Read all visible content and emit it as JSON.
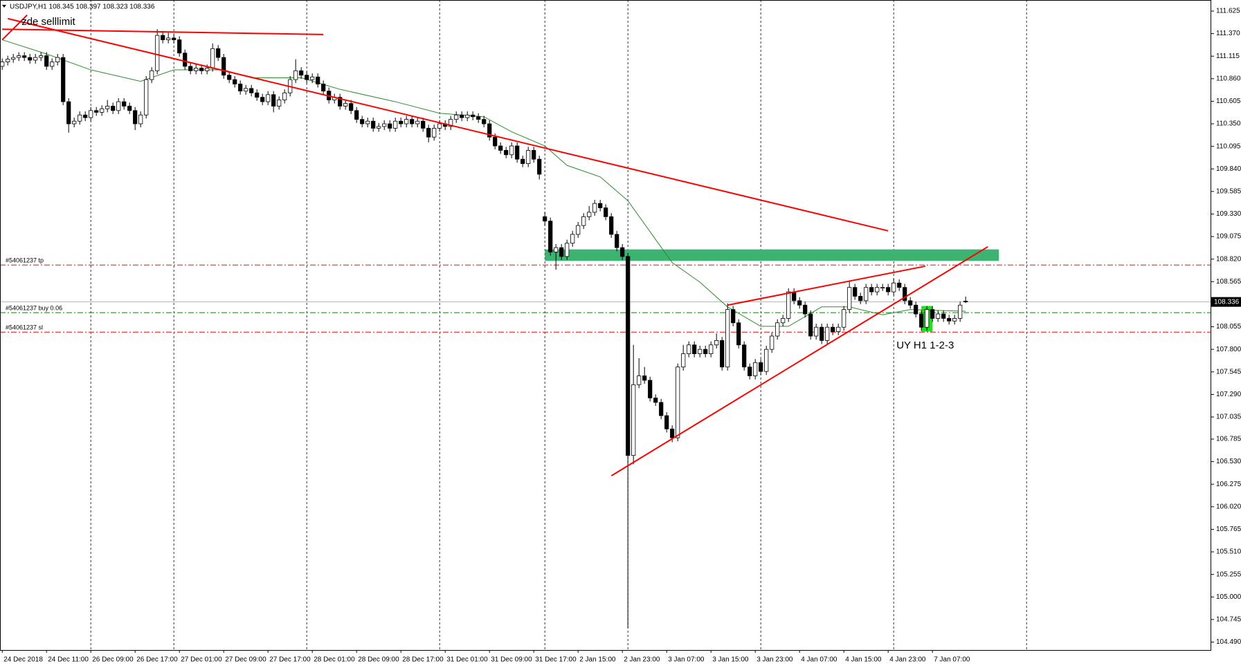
{
  "chart_data": {
    "type": "candlestick",
    "title": "USDJPY,H1  108.345 108.397 108.323 108.336",
    "xlim": [
      -0.4,
      218.35
    ],
    "ylim": [
      104.4,
      111.75
    ],
    "yticks": [
      {
        "value": 104.49,
        "label": "104.490"
      },
      104.745,
      {
        "value": 105,
        "label": "105.000"
      },
      105.255,
      {
        "value": 105.51,
        "label": "105.510"
      },
      105.765,
      {
        "value": 106.02,
        "label": "106.020"
      },
      106.275,
      {
        "value": 106.53,
        "label": "106.530"
      },
      106.785,
      107.035,
      {
        "value": 107.29,
        "label": "107.290"
      },
      107.545,
      {
        "value": 107.8,
        "label": "107.800"
      },
      108.055,
      108.565,
      {
        "value": 108.82,
        "label": "108.820"
      },
      109.075,
      {
        "value": 109.33,
        "label": "109.330"
      },
      109.585,
      {
        "value": 109.84,
        "label": "109.840"
      },
      110.095,
      {
        "value": 110.35,
        "label": "110.350"
      },
      110.605,
      {
        "value": 110.86,
        "label": "110.860"
      },
      111.115,
      {
        "value": 111.37,
        "label": "111.370"
      },
      111.625
    ],
    "xticks": [
      {
        "value": 0,
        "label": "24 Dec 2018"
      },
      {
        "value": 8,
        "label": "24 Dec 11:00"
      },
      {
        "value": 16,
        "label": "26 Dec 09:00"
      },
      {
        "value": 24,
        "label": "26 Dec 17:00"
      },
      {
        "value": 32,
        "label": "27 Dec 01:00"
      },
      {
        "value": 40,
        "label": "27 Dec 09:00"
      },
      {
        "value": 48,
        "label": "27 Dec 17:00"
      },
      {
        "value": 56,
        "label": "28 Dec 01:00"
      },
      {
        "value": 64,
        "label": "28 Dec 09:00"
      },
      {
        "value": 72,
        "label": "28 Dec 17:00"
      },
      {
        "value": 80,
        "label": "31 Dec 01:00"
      },
      {
        "value": 88,
        "label": "31 Dec 09:00"
      },
      {
        "value": 96,
        "label": "31 Dec 17:00"
      },
      {
        "value": 104,
        "label": "2 Jan 15:00"
      },
      {
        "value": 112,
        "label": "2 Jan 23:00"
      },
      {
        "value": 120,
        "label": "3 Jan 07:00"
      },
      {
        "value": 128,
        "label": "3 Jan 15:00"
      },
      {
        "value": 136,
        "label": "3 Jan 23:00"
      },
      {
        "value": 144,
        "label": "4 Jan 07:00"
      },
      {
        "value": 152,
        "label": "4 Jan 15:00"
      },
      {
        "value": 160,
        "label": "4 Jan 23:00"
      },
      {
        "value": 168,
        "label": "7 Jan 07:00"
      }
    ],
    "separators": [
      16,
      31,
      55,
      79,
      98,
      113,
      137,
      161,
      185
    ],
    "bid": 108.336,
    "candles": [
      [
        111.0,
        111.09,
        110.96,
        111.05
      ],
      [
        111.05,
        111.12,
        111.01,
        111.08
      ],
      [
        111.08,
        111.14,
        111.04,
        111.1
      ],
      [
        111.1,
        111.16,
        111.06,
        111.12
      ],
      [
        111.12,
        111.16,
        111.06,
        111.1
      ],
      [
        111.1,
        111.14,
        111.03,
        111.07
      ],
      [
        111.07,
        111.14,
        111.03,
        111.1
      ],
      [
        111.1,
        111.16,
        111.06,
        111.12
      ],
      [
        111.12,
        111.16,
        110.96,
        111.0
      ],
      [
        111.0,
        111.09,
        110.96,
        111.05
      ],
      [
        111.05,
        111.14,
        111.01,
        111.1
      ],
      [
        111.1,
        111.14,
        110.56,
        110.6
      ],
      [
        110.6,
        110.64,
        110.25,
        110.35
      ],
      [
        110.35,
        110.42,
        110.31,
        110.38
      ],
      [
        110.38,
        110.49,
        110.34,
        110.45
      ],
      [
        110.45,
        110.49,
        110.38,
        110.42
      ],
      [
        110.42,
        110.54,
        110.38,
        110.5
      ],
      [
        110.5,
        110.54,
        110.44,
        110.48
      ],
      [
        110.48,
        110.56,
        110.44,
        110.52
      ],
      [
        110.52,
        110.62,
        110.48,
        110.55
      ],
      [
        110.55,
        110.59,
        110.46,
        110.5
      ],
      [
        110.5,
        110.64,
        110.46,
        110.6
      ],
      [
        110.6,
        110.64,
        110.51,
        110.55
      ],
      [
        110.55,
        110.59,
        110.46,
        110.5
      ],
      [
        110.5,
        110.54,
        110.28,
        110.35
      ],
      [
        110.35,
        110.49,
        110.31,
        110.45
      ],
      [
        110.45,
        110.89,
        110.41,
        110.85
      ],
      [
        110.85,
        110.99,
        110.81,
        110.95
      ],
      [
        110.95,
        111.42,
        110.91,
        111.35
      ],
      [
        111.35,
        111.4,
        111.26,
        111.3
      ],
      [
        111.3,
        111.38,
        111.26,
        111.32
      ],
      [
        111.32,
        111.36,
        111.26,
        111.3
      ],
      [
        111.3,
        111.34,
        111.11,
        111.15
      ],
      [
        111.15,
        111.19,
        110.96,
        111.0
      ],
      [
        111.0,
        111.04,
        110.91,
        110.95
      ],
      [
        110.95,
        111.02,
        110.91,
        110.98
      ],
      [
        110.98,
        111.02,
        110.91,
        110.95
      ],
      [
        110.95,
        111.02,
        110.91,
        110.98
      ],
      [
        110.98,
        111.26,
        110.94,
        111.2
      ],
      [
        111.2,
        111.24,
        111.06,
        111.1
      ],
      [
        111.1,
        111.14,
        110.86,
        110.9
      ],
      [
        110.9,
        110.94,
        110.81,
        110.85
      ],
      [
        110.85,
        110.89,
        110.76,
        110.8
      ],
      [
        110.8,
        110.84,
        110.68,
        110.72
      ],
      [
        110.72,
        110.79,
        110.68,
        110.75
      ],
      [
        110.75,
        110.79,
        110.66,
        110.7
      ],
      [
        110.7,
        110.74,
        110.61,
        110.65
      ],
      [
        110.65,
        110.69,
        110.56,
        110.6
      ],
      [
        110.6,
        110.72,
        110.56,
        110.68
      ],
      [
        110.68,
        110.72,
        110.48,
        110.55
      ],
      [
        110.55,
        110.66,
        110.51,
        110.62
      ],
      [
        110.62,
        110.74,
        110.58,
        110.7
      ],
      [
        110.7,
        110.89,
        110.66,
        110.85
      ],
      [
        110.85,
        111.08,
        110.81,
        110.95
      ],
      [
        110.95,
        110.99,
        110.86,
        110.9
      ],
      [
        110.9,
        110.94,
        110.81,
        110.85
      ],
      [
        110.85,
        110.92,
        110.81,
        110.88
      ],
      [
        110.88,
        110.92,
        110.76,
        110.8
      ],
      [
        110.8,
        110.84,
        110.68,
        110.72
      ],
      [
        110.72,
        110.76,
        110.58,
        110.62
      ],
      [
        110.62,
        110.69,
        110.58,
        110.65
      ],
      [
        110.65,
        110.69,
        110.51,
        110.55
      ],
      [
        110.55,
        110.62,
        110.51,
        110.58
      ],
      [
        110.58,
        110.62,
        110.46,
        110.5
      ],
      [
        110.5,
        110.54,
        110.36,
        110.4
      ],
      [
        110.4,
        110.44,
        110.31,
        110.35
      ],
      [
        110.35,
        110.42,
        110.31,
        110.38
      ],
      [
        110.38,
        110.42,
        110.26,
        110.3
      ],
      [
        110.3,
        110.36,
        110.26,
        110.32
      ],
      [
        110.32,
        110.39,
        110.28,
        110.35
      ],
      [
        110.35,
        110.39,
        110.26,
        110.3
      ],
      [
        110.3,
        110.42,
        110.26,
        110.38
      ],
      [
        110.38,
        110.42,
        110.31,
        110.35
      ],
      [
        110.35,
        110.44,
        110.31,
        110.4
      ],
      [
        110.4,
        110.44,
        110.31,
        110.35
      ],
      [
        110.35,
        110.42,
        110.31,
        110.38
      ],
      [
        110.38,
        110.42,
        110.26,
        110.3
      ],
      [
        110.3,
        110.34,
        110.14,
        110.2
      ],
      [
        110.2,
        110.34,
        110.16,
        110.3
      ],
      [
        110.3,
        110.39,
        110.26,
        110.35
      ],
      [
        110.35,
        110.39,
        110.28,
        110.32
      ],
      [
        110.32,
        110.44,
        110.28,
        110.4
      ],
      [
        110.4,
        110.49,
        110.36,
        110.45
      ],
      [
        110.45,
        110.49,
        110.38,
        110.42
      ],
      [
        110.42,
        110.49,
        110.38,
        110.45
      ],
      [
        110.45,
        110.49,
        110.39,
        110.43
      ],
      [
        110.43,
        110.47,
        110.36,
        110.4
      ],
      [
        110.4,
        110.44,
        110.31,
        110.35
      ],
      [
        110.35,
        110.39,
        110.16,
        110.2
      ],
      [
        110.2,
        110.24,
        110.06,
        110.1
      ],
      [
        110.1,
        110.14,
        110.01,
        110.05
      ],
      [
        110.05,
        110.09,
        109.96,
        110.0
      ],
      [
        110.0,
        110.14,
        109.96,
        110.1
      ],
      [
        110.1,
        110.14,
        109.91,
        109.95
      ],
      [
        109.95,
        109.99,
        109.86,
        109.9
      ],
      [
        109.9,
        110.09,
        109.86,
        110.05
      ],
      [
        110.05,
        110.09,
        109.91,
        109.95
      ],
      [
        109.95,
        109.99,
        109.72,
        109.78
      ],
      [
        109.3,
        109.35,
        109.2,
        109.25
      ],
      [
        109.25,
        109.29,
        108.86,
        108.9
      ],
      [
        108.9,
        108.99,
        108.7,
        108.95
      ],
      [
        108.95,
        108.99,
        108.81,
        108.85
      ],
      [
        108.85,
        109.04,
        108.81,
        109.0
      ],
      [
        109.0,
        109.14,
        108.96,
        109.1
      ],
      [
        109.1,
        109.24,
        109.06,
        109.2
      ],
      [
        109.2,
        109.34,
        109.16,
        109.3
      ],
      [
        109.3,
        109.42,
        109.26,
        109.35
      ],
      [
        109.35,
        109.49,
        109.31,
        109.45
      ],
      [
        109.45,
        109.49,
        109.36,
        109.4
      ],
      [
        109.4,
        109.44,
        109.26,
        109.3
      ],
      [
        109.3,
        109.34,
        109.06,
        109.1
      ],
      [
        109.1,
        109.14,
        108.91,
        108.95
      ],
      [
        108.95,
        108.99,
        108.81,
        108.85
      ],
      [
        108.85,
        108.89,
        104.65,
        106.6
      ],
      [
        106.6,
        107.85,
        106.5,
        107.4
      ],
      [
        107.4,
        107.7,
        107.36,
        107.5
      ],
      [
        107.5,
        107.6,
        107.41,
        107.45
      ],
      [
        107.45,
        107.49,
        107.21,
        107.25
      ],
      [
        107.25,
        107.29,
        107.16,
        107.2
      ],
      [
        107.2,
        107.24,
        107.01,
        107.05
      ],
      [
        107.05,
        107.09,
        106.86,
        106.9
      ],
      [
        106.9,
        106.94,
        106.75,
        106.8
      ],
      [
        106.8,
        107.64,
        106.76,
        107.6
      ],
      [
        107.6,
        107.85,
        107.56,
        107.75
      ],
      [
        107.75,
        107.89,
        107.71,
        107.85
      ],
      [
        107.85,
        107.89,
        107.71,
        107.75
      ],
      [
        107.75,
        107.84,
        107.71,
        107.8
      ],
      [
        107.8,
        107.84,
        107.71,
        107.75
      ],
      [
        107.75,
        107.89,
        107.71,
        107.85
      ],
      [
        107.85,
        107.98,
        107.81,
        107.9
      ],
      [
        107.9,
        107.94,
        107.56,
        107.6
      ],
      [
        107.6,
        108.32,
        107.56,
        108.25
      ],
      [
        108.25,
        108.29,
        108.06,
        108.1
      ],
      [
        108.1,
        108.14,
        107.81,
        107.85
      ],
      [
        107.85,
        107.89,
        107.56,
        107.6
      ],
      [
        107.6,
        107.64,
        107.46,
        107.5
      ],
      [
        107.5,
        107.69,
        107.46,
        107.65
      ],
      [
        107.65,
        107.69,
        107.51,
        107.55
      ],
      [
        107.55,
        107.84,
        107.51,
        107.8
      ],
      [
        107.8,
        107.99,
        107.76,
        107.95
      ],
      [
        107.95,
        108.14,
        107.91,
        108.1
      ],
      [
        108.1,
        108.19,
        108.06,
        108.15
      ],
      [
        108.15,
        108.49,
        108.11,
        108.45
      ],
      [
        108.45,
        108.49,
        108.31,
        108.35
      ],
      [
        108.35,
        108.39,
        108.26,
        108.3
      ],
      [
        108.3,
        108.34,
        108.16,
        108.2
      ],
      [
        108.2,
        108.24,
        107.91,
        107.95
      ],
      [
        107.95,
        108.09,
        107.91,
        108.05
      ],
      [
        108.05,
        108.09,
        107.86,
        107.9
      ],
      [
        107.9,
        108.09,
        107.86,
        108.05
      ],
      [
        108.05,
        108.09,
        107.96,
        108.0
      ],
      [
        108.0,
        108.09,
        107.96,
        108.05
      ],
      [
        108.05,
        108.29,
        108.01,
        108.25
      ],
      [
        108.25,
        108.58,
        108.21,
        108.5
      ],
      [
        108.5,
        108.54,
        108.36,
        108.4
      ],
      [
        108.4,
        108.44,
        108.31,
        108.35
      ],
      [
        108.35,
        108.54,
        108.31,
        108.5
      ],
      [
        108.5,
        108.54,
        108.41,
        108.45
      ],
      [
        108.45,
        108.54,
        108.41,
        108.5
      ],
      [
        108.5,
        108.54,
        108.46,
        108.5
      ],
      [
        108.5,
        108.54,
        108.41,
        108.45
      ],
      [
        108.45,
        108.6,
        108.41,
        108.55
      ],
      [
        108.55,
        108.59,
        108.46,
        108.5
      ],
      [
        108.5,
        108.54,
        108.31,
        108.35
      ],
      [
        108.35,
        108.39,
        108.26,
        108.3
      ],
      [
        108.3,
        108.34,
        108.16,
        108.2
      ],
      [
        108.2,
        108.24,
        108.01,
        108.05
      ],
      [
        108.05,
        108.29,
        108.01,
        108.25
      ],
      [
        108.25,
        108.29,
        108.11,
        108.15
      ],
      [
        108.15,
        108.24,
        108.11,
        108.2
      ],
      [
        108.2,
        108.24,
        108.11,
        108.15
      ],
      [
        108.15,
        108.19,
        108.08,
        108.12
      ],
      [
        108.12,
        108.19,
        108.08,
        108.15
      ],
      [
        108.15,
        108.34,
        108.11,
        108.3
      ],
      [
        108.345,
        108.397,
        108.323,
        108.336
      ]
    ],
    "ma": {
      "color": "#2e8b2e",
      "x": [
        0,
        8,
        16,
        25,
        31,
        40,
        45,
        54,
        61,
        71,
        79,
        87,
        92,
        98,
        102,
        108,
        113,
        117,
        121,
        126,
        131,
        137,
        142,
        148,
        153,
        159,
        164,
        174
      ],
      "values": [
        111.3,
        111.14,
        110.96,
        110.83,
        110.96,
        110.96,
        110.87,
        110.87,
        110.74,
        110.6,
        110.47,
        110.43,
        110.26,
        110.1,
        109.88,
        109.75,
        109.48,
        109.13,
        108.78,
        108.56,
        108.28,
        108.06,
        108.06,
        108.28,
        108.28,
        108.19,
        108.25,
        108.23
      ]
    },
    "orders": [
      {
        "label": "#54061237 tp",
        "price": 108.753,
        "color": "#ff0000"
      },
      {
        "label": "#54061237 buy 0.06",
        "price": 108.215,
        "color": "#008800"
      },
      {
        "label": "#54061237 sl",
        "price": 107.995,
        "color": "#ff0000"
      }
    ],
    "zones": [
      {
        "x": [
          98,
          180
        ],
        "y": [
          108.8,
          108.93
        ],
        "color": "#3cb371"
      },
      {
        "x": [
          166,
          168
        ],
        "y": [
          108.0,
          108.29
        ],
        "color": "#22dd22"
      }
    ],
    "trendlines": [
      {
        "x": [
          0,
          58
        ],
        "y": [
          111.42,
          111.36
        ],
        "color": "#ff0000"
      },
      {
        "x": [
          0,
          4.5
        ],
        "y": [
          111.3,
          111.58
        ],
        "color": "#ff0000"
      },
      {
        "x": [
          1,
          160
        ],
        "y": [
          111.54,
          109.14
        ],
        "color": "#ff0000"
      },
      {
        "x": [
          110,
          178
        ],
        "y": [
          106.37,
          108.96
        ],
        "color": "#ff0000"
      },
      {
        "x": [
          131,
          166.7
        ],
        "y": [
          108.3,
          108.74
        ],
        "color": "#ff0000"
      }
    ],
    "annotations": [
      {
        "text": "zde selllimit",
        "x": 3.5,
        "y": 111.5
      },
      {
        "text": "UY H1 1-2-3",
        "x": 161.5,
        "y": 107.84
      }
    ]
  }
}
